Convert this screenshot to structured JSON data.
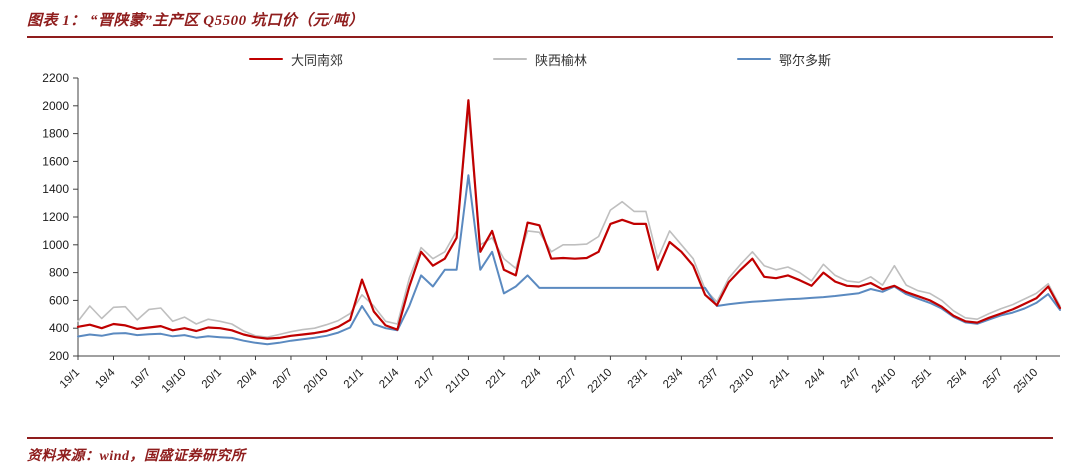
{
  "header": {
    "title": "图表 1： “晋陕蒙”主产区 Q5500 坑口价（元/吨）"
  },
  "footer": {
    "source": "资料来源：wind，国盛证券研究所"
  },
  "colors": {
    "accent_rule": "#8f1d1d",
    "axis": "#404040"
  },
  "chart_data": {
    "type": "line",
    "title": "“晋陕蒙”主产区 Q5500 坑口价（元/吨）",
    "ylabel": "",
    "xlabel": "",
    "ylim": [
      200,
      2200
    ],
    "ytick_step": 200,
    "grid": false,
    "legend_position": "top",
    "x_tick_every": 3,
    "x_labels": [
      "19/1",
      "19/4",
      "19/7",
      "19/10",
      "20/1",
      "20/4",
      "20/7",
      "20/10",
      "21/1",
      "21/4",
      "21/7",
      "21/10",
      "22/1",
      "22/4",
      "22/7",
      "22/10",
      "23/1",
      "23/4",
      "23/7",
      "23/10",
      "24/1",
      "24/4",
      "24/7",
      "24/10",
      "25/1",
      "25/4",
      "25/7",
      "25/10"
    ],
    "draw_order": [
      1,
      2,
      0
    ],
    "series": [
      {
        "name": "大同南郊",
        "color": "#c00000",
        "width": 2.2,
        "values": [
          410,
          425,
          400,
          430,
          420,
          395,
          405,
          415,
          385,
          400,
          380,
          405,
          400,
          385,
          355,
          335,
          325,
          330,
          345,
          355,
          365,
          380,
          410,
          460,
          750,
          520,
          420,
          390,
          700,
          950,
          850,
          900,
          1050,
          2040,
          950,
          1100,
          820,
          780,
          1160,
          1140,
          900,
          905,
          900,
          905,
          950,
          1150,
          1180,
          1150,
          1150,
          820,
          1020,
          950,
          850,
          640,
          565,
          730,
          820,
          900,
          770,
          760,
          780,
          745,
          705,
          800,
          735,
          705,
          700,
          725,
          680,
          705,
          660,
          630,
          600,
          555,
          490,
          450,
          440,
          475,
          505,
          535,
          575,
          615,
          700,
          545
        ]
      },
      {
        "name": "陕西榆林",
        "color": "#bfbfbf",
        "width": 1.6,
        "values": [
          450,
          560,
          470,
          550,
          555,
          460,
          535,
          545,
          450,
          480,
          430,
          465,
          450,
          430,
          380,
          345,
          335,
          355,
          375,
          390,
          400,
          425,
          455,
          505,
          640,
          560,
          450,
          430,
          760,
          980,
          900,
          950,
          1100,
          1950,
          1000,
          1050,
          900,
          830,
          1100,
          1090,
          950,
          1000,
          1000,
          1005,
          1060,
          1250,
          1310,
          1240,
          1240,
          900,
          1100,
          1000,
          900,
          680,
          590,
          760,
          860,
          950,
          850,
          820,
          840,
          800,
          740,
          860,
          780,
          740,
          730,
          770,
          710,
          850,
          710,
          670,
          650,
          600,
          525,
          475,
          465,
          505,
          540,
          570,
          610,
          650,
          720,
          560
        ]
      },
      {
        "name": "鄂尔多斯",
        "color": "#5b8ac0",
        "width": 2.0,
        "values": [
          340,
          355,
          345,
          362,
          365,
          350,
          356,
          360,
          342,
          350,
          332,
          342,
          335,
          330,
          310,
          295,
          285,
          295,
          310,
          320,
          332,
          345,
          368,
          405,
          560,
          430,
          400,
          385,
          560,
          780,
          700,
          820,
          820,
          1500,
          820,
          950,
          650,
          700,
          780,
          690,
          690,
          690,
          690,
          690,
          690,
          690,
          690,
          690,
          690,
          690,
          690,
          690,
          690,
          690,
          560,
          572,
          582,
          590,
          596,
          602,
          608,
          612,
          618,
          624,
          632,
          642,
          652,
          682,
          662,
          700,
          645,
          612,
          582,
          542,
          482,
          442,
          432,
          462,
          492,
          512,
          542,
          582,
          645,
          532
        ]
      }
    ]
  }
}
